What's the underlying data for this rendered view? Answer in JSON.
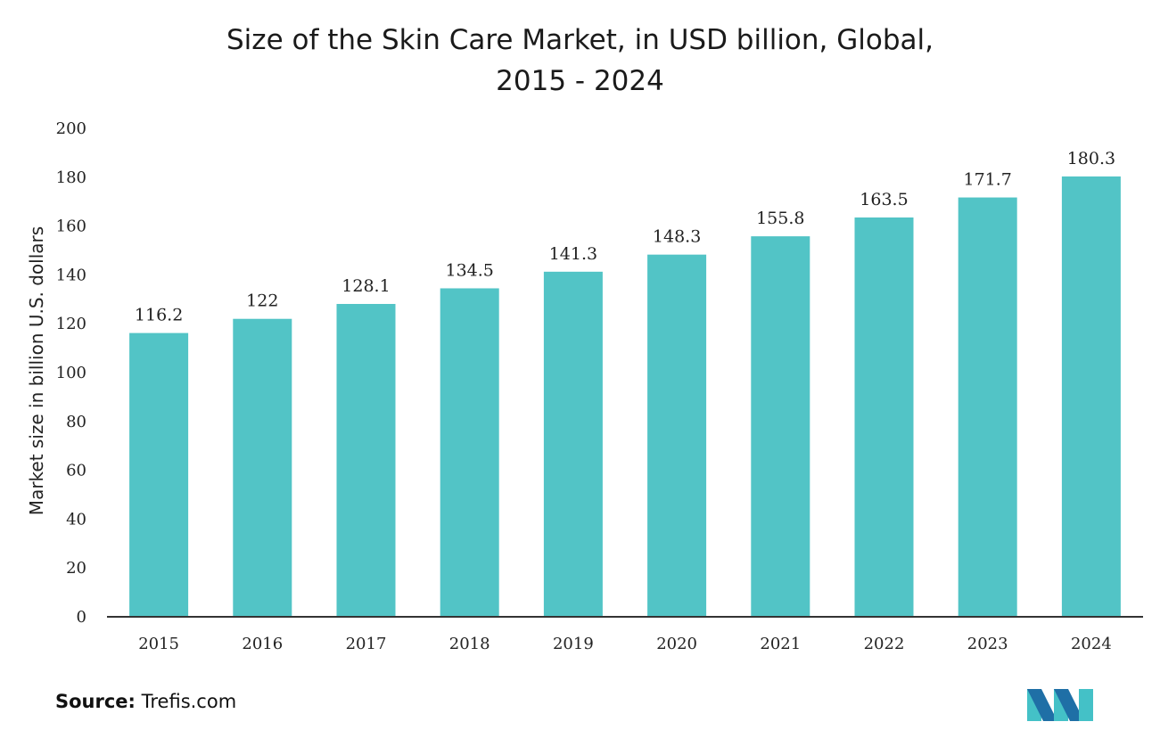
{
  "chart_data": {
    "type": "bar",
    "title": "Size of the Skin Care Market, in USD billion, Global,",
    "subtitle": "2015 - 2024",
    "categories": [
      "2015",
      "2016",
      "2017",
      "2018",
      "2019",
      "2020",
      "2021",
      "2022",
      "2023",
      "2024"
    ],
    "values": [
      116.2,
      122,
      128.1,
      134.5,
      141.3,
      148.3,
      155.8,
      163.5,
      171.7,
      180.3
    ],
    "ylabel": "Market size in billion U.S. dollars",
    "xlabel": "",
    "ylim": [
      0,
      200
    ],
    "yticks": [
      0,
      20,
      40,
      60,
      80,
      100,
      120,
      140,
      160,
      180,
      200
    ],
    "grid": false,
    "bar_color": "#52c4c6",
    "axis_color": "#333333"
  },
  "source": {
    "label": "Source:",
    "text": " Trefis.com"
  },
  "logo": {
    "icon": "mordor-intelligence-logo-icon",
    "color_dark": "#1f6fa6",
    "color_light": "#44c1c7"
  }
}
